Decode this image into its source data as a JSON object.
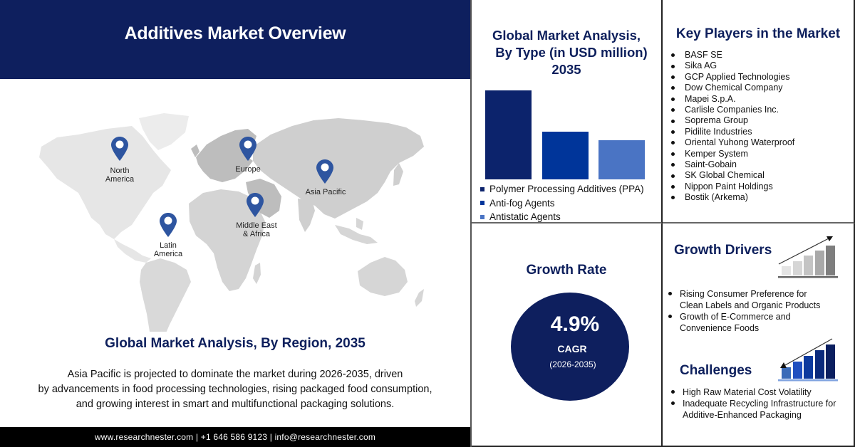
{
  "header": {
    "title": "Additives Market Overview"
  },
  "map": {
    "regions": [
      {
        "id": "north-america",
        "label_line1": "North",
        "label_line2": "America"
      },
      {
        "id": "europe",
        "label_line1": "Europe",
        "label_line2": ""
      },
      {
        "id": "asia-pacific",
        "label_line1": "Asia Pacific",
        "label_line2": ""
      },
      {
        "id": "middle-east-africa",
        "label_line1": "Middle East",
        "label_line2": "& Africa"
      },
      {
        "id": "latin-america",
        "label_line1": "Latin",
        "label_line2": "America"
      }
    ],
    "pin_color": "#2e55a0",
    "land_light": "#e6e6e6",
    "land_dark": "#cfcfcf"
  },
  "region_section": {
    "title": "Global Market Analysis, By Region, 2035",
    "description_line1": "Asia Pacific is projected to dominate the market during 2026-2035, driven",
    "description_line2": "by advancements in food processing technologies, rising packaged food consumption,",
    "description_line3": "and growing interest in smart and multifunctional packaging solutions."
  },
  "footer": {
    "text": "www.researchnester.com | +1 646 586 9123 | info@researchnester.com"
  },
  "type_section": {
    "title_line1": "Global Market Analysis,",
    "title_line2": "By Type (in USD million)",
    "title_line3": "2035"
  },
  "chart_data": {
    "type": "bar",
    "title": "Global Market Analysis, By Type (in USD million) 2035",
    "categories": [
      "Polymer Processing Additives (PPA)",
      "Anti-fog Agents",
      "Antistatic Agents"
    ],
    "values": [
      125,
      67,
      55
    ],
    "value_note": "relative bar heights in px (no axis shown)",
    "colors": [
      "#0c236c",
      "#00359a",
      "#4a74c4"
    ],
    "xlabel": "",
    "ylabel": "",
    "grid": false,
    "legend_position": "bottom"
  },
  "key_players": {
    "title": "Key Players in the Market",
    "items": [
      "BASF SE",
      "Sika AG",
      "GCP Applied Technologies",
      "Dow Chemical Company",
      "Mapei S.p.A.",
      "Carlisle Companies Inc.",
      "Soprema Group",
      "Pidilite Industries",
      "Oriental Yuhong Waterproof",
      "Kemper System",
      "Saint-Gobain",
      "SK Global Chemical",
      "Nippon Paint Holdings",
      "Bostik (Arkema)"
    ]
  },
  "growth_rate": {
    "title": "Growth Rate",
    "value": "4.9%",
    "label": "CAGR",
    "period": "(2026-2035)"
  },
  "growth_drivers": {
    "title": "Growth Drivers",
    "items": [
      {
        "line1": "Rising Consumer Preference for",
        "line2": "Clean Labels and Organic Products"
      },
      {
        "line1": "Growth of E-Commerce and",
        "line2": "Convenience Foods"
      }
    ]
  },
  "challenges": {
    "title": "Challenges",
    "items": [
      {
        "line1": "High Raw Material Cost Volatility",
        "line2": ""
      },
      {
        "line1": "Inadequate Recycling Infrastructure for",
        "line2": "Additive-Enhanced Packaging"
      }
    ]
  },
  "colors": {
    "navy": "#0e1f5e",
    "title_text": "#0d1f5c",
    "footer_bg": "#000000"
  }
}
